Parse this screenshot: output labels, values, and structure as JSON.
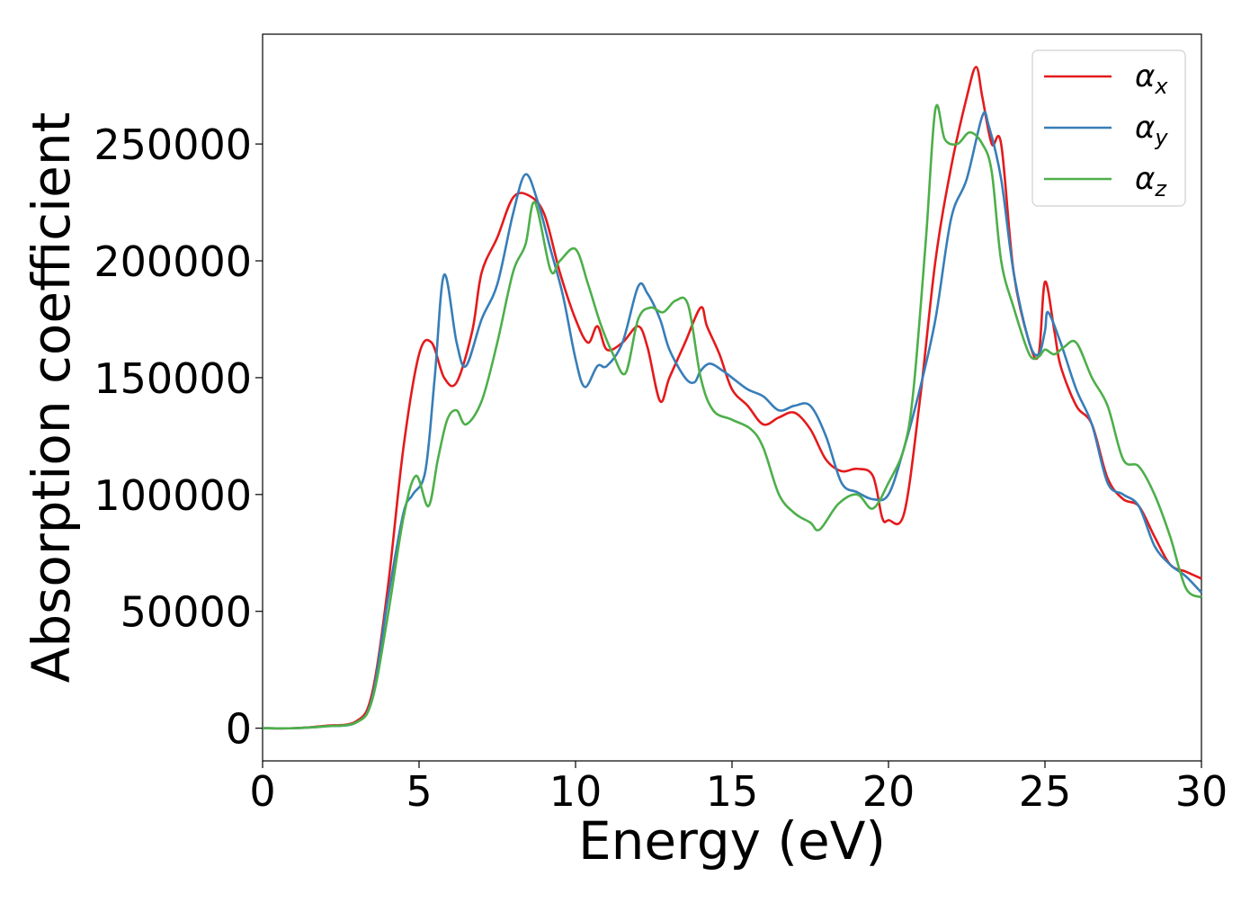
{
  "chart_data": {
    "type": "line",
    "title": "",
    "xlabel": "Energy (eV)",
    "ylabel": "Absorption coefficient",
    "xlim": [
      0,
      30
    ],
    "ylim": [
      -14000,
      297000
    ],
    "xticks": [
      0,
      5,
      10,
      15,
      20,
      25,
      30
    ],
    "xtick_labels": [
      "0",
      "5",
      "10",
      "15",
      "20",
      "25",
      "30"
    ],
    "yticks": [
      0,
      50000,
      100000,
      150000,
      200000,
      250000
    ],
    "ytick_labels": [
      "0",
      "50000",
      "100000",
      "150000",
      "200000",
      "250000"
    ],
    "grid": false,
    "legend_position": "top-right",
    "series": [
      {
        "name": "α_x",
        "symbol": "α",
        "subscript": "x",
        "color": "#e41a1c",
        "x": [
          0,
          1,
          2,
          3,
          3.5,
          4,
          4.5,
          5,
          5.4,
          5.8,
          6.2,
          6.7,
          7,
          7.5,
          8,
          8.5,
          9,
          9.5,
          10,
          10.4,
          10.7,
          11,
          11.5,
          12,
          12.3,
          12.7,
          13,
          13.5,
          14,
          14.2,
          14.6,
          15,
          15.5,
          16,
          16.5,
          17,
          17.5,
          18,
          18.5,
          19,
          19.5,
          19.8,
          20,
          20.5,
          21,
          21.5,
          22,
          22.5,
          22.8,
          23,
          23.3,
          23.6,
          24,
          24.5,
          24.8,
          25,
          25.3,
          25.5,
          26,
          26.5,
          27,
          27.5,
          28,
          28.5,
          29,
          29.5,
          30
        ],
        "y": [
          0,
          0,
          1000,
          3000,
          15000,
          60000,
          120000,
          160000,
          165000,
          150000,
          148000,
          170000,
          195000,
          210000,
          227000,
          228000,
          220000,
          195000,
          175000,
          165000,
          172000,
          162000,
          165000,
          172000,
          163000,
          140000,
          150000,
          165000,
          180000,
          172000,
          160000,
          145000,
          138000,
          130000,
          133000,
          135000,
          128000,
          115000,
          110000,
          111000,
          108000,
          90000,
          89000,
          92000,
          140000,
          200000,
          240000,
          270000,
          283000,
          270000,
          250000,
          250000,
          195000,
          165000,
          160000,
          191000,
          170000,
          155000,
          138000,
          130000,
          107000,
          98000,
          95000,
          82000,
          70000,
          67000,
          64000
        ]
      },
      {
        "name": "α_y",
        "symbol": "α",
        "subscript": "y",
        "color": "#377eb8",
        "x": [
          0,
          1,
          2,
          3,
          3.5,
          4,
          4.5,
          4.8,
          5.2,
          5.5,
          5.8,
          6.2,
          6.5,
          7,
          7.5,
          8,
          8.4,
          8.8,
          9.2,
          9.6,
          10,
          10.3,
          10.7,
          11,
          11.5,
          12,
          12.3,
          12.7,
          13,
          13.5,
          13.8,
          14,
          14.3,
          14.7,
          15,
          15.5,
          16,
          16.5,
          17,
          17.5,
          18,
          18.5,
          19,
          19.5,
          20,
          20.5,
          21,
          21.5,
          22,
          22.5,
          23,
          23.2,
          23.6,
          24,
          24.5,
          24.8,
          25,
          25.1,
          25.5,
          26,
          26.5,
          27,
          27.5,
          28,
          28.5,
          29,
          29.5,
          30
        ],
        "y": [
          0,
          0,
          800,
          2500,
          13000,
          55000,
          92000,
          100000,
          110000,
          150000,
          194000,
          165000,
          155000,
          175000,
          190000,
          220000,
          237000,
          225000,
          205000,
          185000,
          158000,
          146000,
          155000,
          155000,
          165000,
          189000,
          186000,
          175000,
          162000,
          150000,
          148000,
          153000,
          156000,
          153000,
          150000,
          145000,
          142000,
          136000,
          138000,
          138000,
          125000,
          105000,
          101000,
          98000,
          100000,
          120000,
          145000,
          175000,
          218000,
          235000,
          262000,
          258000,
          235000,
          195000,
          165000,
          160000,
          170000,
          178000,
          165000,
          145000,
          130000,
          105000,
          100000,
          95000,
          78000,
          70000,
          65000,
          58000
        ]
      },
      {
        "name": "α_z",
        "symbol": "α",
        "subscript": "z",
        "color": "#4daf4a",
        "x": [
          0,
          1,
          2,
          3,
          3.5,
          4,
          4.5,
          4.9,
          5.3,
          5.6,
          5.9,
          6.2,
          6.5,
          7,
          7.5,
          8,
          8.4,
          8.7,
          9.2,
          9.5,
          10,
          10.4,
          10.8,
          11.2,
          11.6,
          12,
          12.4,
          12.8,
          13.2,
          13.6,
          14,
          14.4,
          15,
          15.6,
          16,
          16.5,
          17,
          17.5,
          17.8,
          18.4,
          19,
          19.5,
          20,
          20.5,
          20.8,
          21.2,
          21.5,
          21.8,
          22.2,
          22.6,
          23,
          23.3,
          23.6,
          24,
          24.5,
          24.8,
          25,
          25.3,
          25.6,
          26,
          26.5,
          27,
          27.5,
          28,
          28.5,
          29,
          29.5,
          30
        ],
        "y": [
          0,
          0,
          800,
          2500,
          12000,
          48000,
          90000,
          108000,
          95000,
          115000,
          132000,
          136000,
          130000,
          140000,
          165000,
          195000,
          207000,
          225000,
          196000,
          200000,
          205000,
          190000,
          173000,
          160000,
          152000,
          175000,
          180000,
          178000,
          183000,
          181000,
          150000,
          136000,
          132000,
          128000,
          120000,
          100000,
          92000,
          88000,
          85000,
          96000,
          100000,
          94000,
          105000,
          120000,
          145000,
          210000,
          265000,
          252000,
          250000,
          255000,
          250000,
          238000,
          200000,
          180000,
          160000,
          159000,
          162000,
          160000,
          163000,
          165000,
          150000,
          138000,
          115000,
          112000,
          100000,
          82000,
          60000,
          56000
        ]
      }
    ]
  }
}
